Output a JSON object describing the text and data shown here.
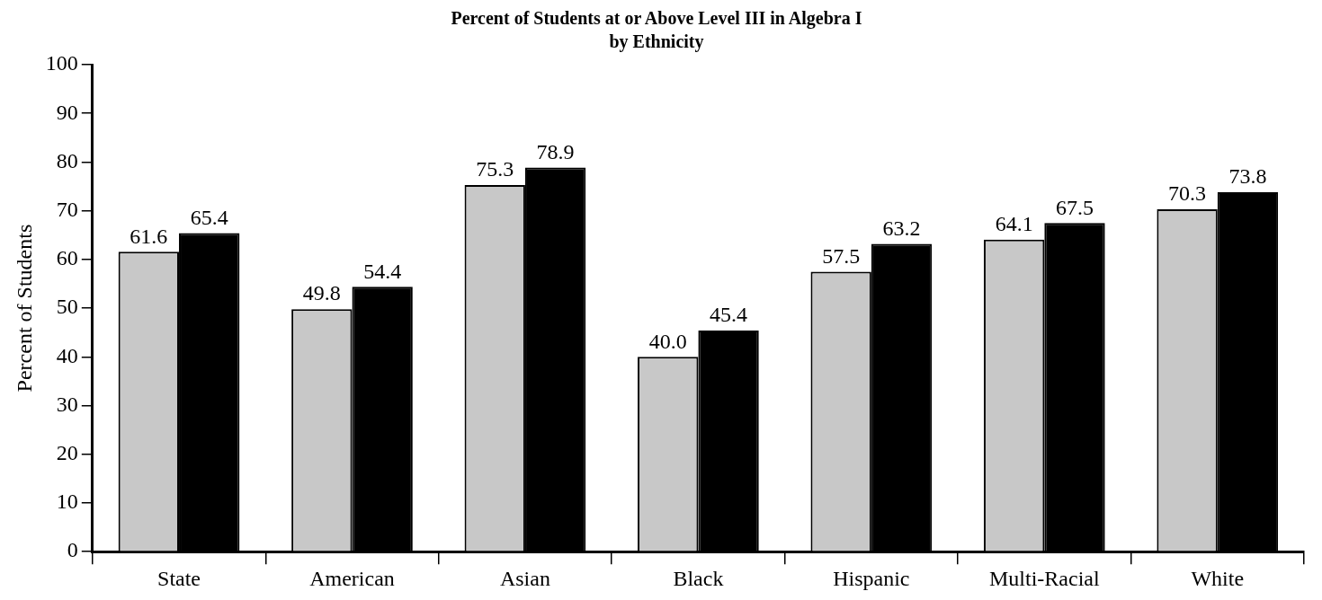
{
  "chart_data": {
    "type": "bar",
    "title": "Percent of Students at or Above Level III in Algebra I",
    "subtitle": "by Ethnicity",
    "ylabel": "Percent of Students",
    "categories": [
      "State",
      "American",
      "Asian",
      "Black",
      "Hispanic",
      "Multi-Racial",
      "White"
    ],
    "series": [
      {
        "color": "#c8c8c8",
        "values": [
          61.6,
          49.8,
          75.3,
          40.0,
          57.5,
          64.1,
          70.3
        ],
        "value_labels": [
          "61.6",
          "49.8",
          "75.3",
          "40.0",
          "57.5",
          "64.1",
          "70.3"
        ]
      },
      {
        "color": "#000000",
        "values": [
          65.4,
          54.4,
          78.9,
          45.4,
          63.2,
          67.5,
          73.8
        ],
        "value_labels": [
          "65.4",
          "54.4",
          "78.9",
          "45.4",
          "63.2",
          "67.5",
          "73.8"
        ]
      }
    ],
    "ylim": [
      0,
      100
    ],
    "yticks": [
      0,
      10,
      20,
      30,
      40,
      50,
      60,
      70,
      80,
      90,
      100
    ],
    "grid": false,
    "legend": false
  }
}
